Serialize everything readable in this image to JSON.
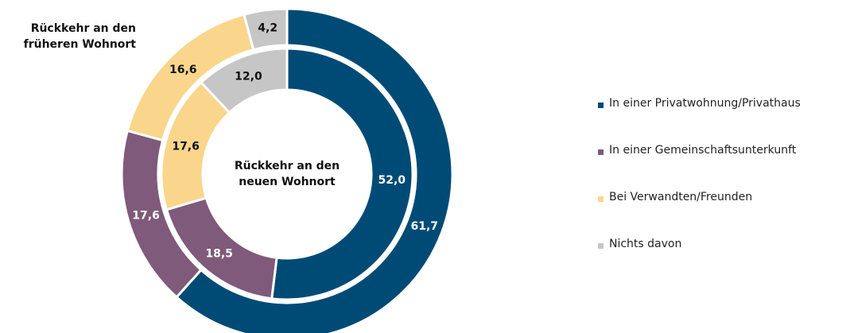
{
  "chart_data": {
    "type": "donut",
    "categories": [
      "In einer Privatwohnung/Privathaus",
      "In einer Gemeinschaftsunterkunft",
      "Bei Verwandten/Freunden",
      "Nichts davon"
    ],
    "colors": [
      "#004b76",
      "#7f5a7a",
      "#f9d68c",
      "#c6c6c6"
    ],
    "series": [
      {
        "name": "Rückkehr an den früheren Wohnort",
        "ring": "outer",
        "values": [
          61.7,
          17.6,
          16.6,
          4.2
        ],
        "value_labels": [
          "61,7",
          "17,6",
          "16,6",
          "4,2"
        ]
      },
      {
        "name": "Rückkehr an den neuen Wohnort",
        "ring": "inner",
        "values": [
          52.0,
          18.5,
          17.6,
          12.0
        ],
        "value_labels": [
          "52,0",
          "18,5",
          "17,6",
          "12,0"
        ]
      }
    ],
    "legend": "right"
  }
}
